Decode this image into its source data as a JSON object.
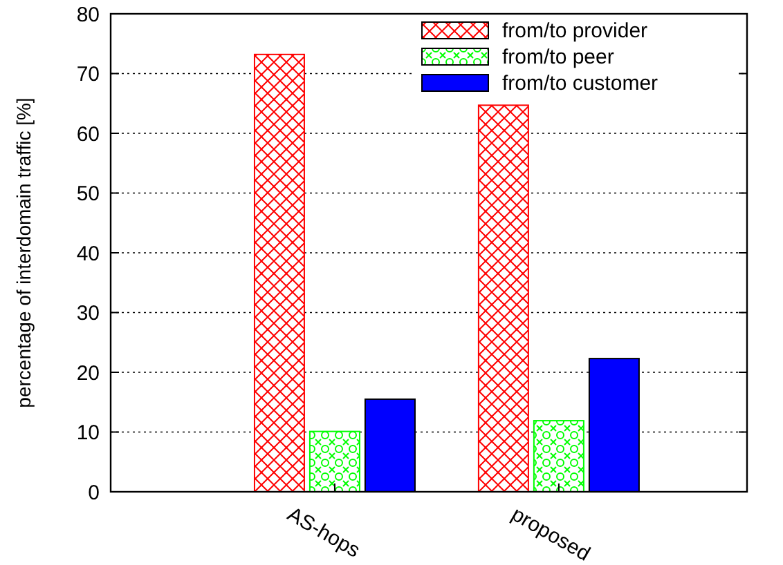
{
  "chart_data": {
    "type": "bar",
    "ylabel": "percentage of interdomain traffic [%]",
    "categories": [
      "AS-hops",
      "proposed"
    ],
    "series": [
      {
        "name": "from/to provider",
        "color": "#ff0000",
        "values": [
          73.2,
          64.7
        ]
      },
      {
        "name": "from/to peer",
        "color": "#00ff00",
        "values": [
          10.1,
          11.9
        ]
      },
      {
        "name": "from/to customer",
        "color": "#0000ff",
        "values": [
          15.5,
          22.3
        ]
      }
    ],
    "ylim": [
      0,
      80
    ],
    "yticks": [
      0,
      10,
      20,
      30,
      40,
      50,
      60,
      70,
      80
    ],
    "grid": "y",
    "legend": "top right"
  }
}
